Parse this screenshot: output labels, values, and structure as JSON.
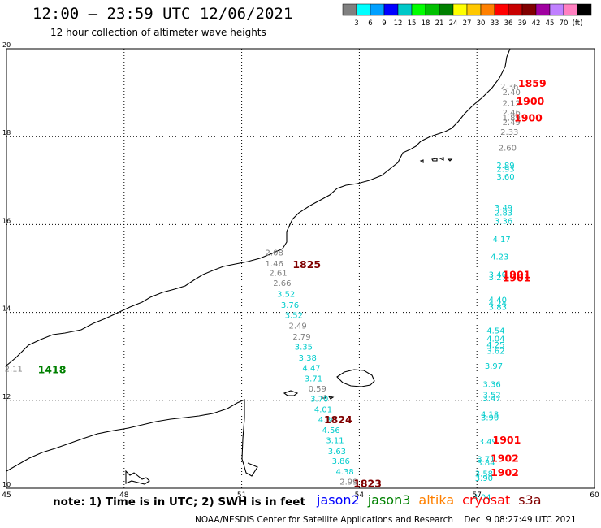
{
  "header": {
    "title": "12:00 – 23:59 UTC 12/06/2021",
    "subtitle": "12 hour collection of altimeter wave heights"
  },
  "colorbar": {
    "swatches": [
      "#808080",
      "#00ffff",
      "#00a0ff",
      "#0000ff",
      "#00c8c8",
      "#00ff00",
      "#00c000",
      "#008000",
      "#ffff00",
      "#ffc800",
      "#ff8000",
      "#ff0000",
      "#c80000",
      "#800000",
      "#a000a0",
      "#c080ff",
      "#ff80c0",
      "#000000"
    ],
    "labels": [
      "3",
      "6",
      "9",
      "12",
      "15",
      "18",
      "21",
      "24",
      "27",
      "30",
      "33",
      "36",
      "39",
      "42",
      "45",
      "70",
      "(ft)"
    ]
  },
  "axes": {
    "x_ticks": [
      "45",
      "48",
      "51",
      "54",
      "57",
      "60"
    ],
    "y_ticks": [
      "20",
      "18",
      "16",
      "14",
      "12",
      "10"
    ]
  },
  "readings": [
    {
      "lon": 51.6,
      "lat": 15.3,
      "v": "2.08",
      "c": "#808080"
    },
    {
      "lon": 51.6,
      "lat": 15.05,
      "v": "1.46",
      "c": "#808080"
    },
    {
      "lon": 51.7,
      "lat": 14.83,
      "v": "2.61",
      "c": "#808080"
    },
    {
      "lon": 51.8,
      "lat": 14.6,
      "v": "2.66",
      "c": "#808080"
    },
    {
      "lon": 51.9,
      "lat": 14.35,
      "v": "3.52",
      "c": "#00cccc"
    },
    {
      "lon": 52.0,
      "lat": 14.1,
      "v": "3.76",
      "c": "#00cccc"
    },
    {
      "lon": 52.1,
      "lat": 13.87,
      "v": "3.52",
      "c": "#00cccc"
    },
    {
      "lon": 52.2,
      "lat": 13.63,
      "v": "2.49",
      "c": "#808080"
    },
    {
      "lon": 52.3,
      "lat": 13.38,
      "v": "2.79",
      "c": "#808080"
    },
    {
      "lon": 52.35,
      "lat": 13.15,
      "v": "3.35",
      "c": "#00cccc"
    },
    {
      "lon": 52.45,
      "lat": 12.9,
      "v": "3.38",
      "c": "#00cccc"
    },
    {
      "lon": 52.55,
      "lat": 12.67,
      "v": "4.47",
      "c": "#00cccc"
    },
    {
      "lon": 52.6,
      "lat": 12.43,
      "v": "3.71",
      "c": "#00cccc"
    },
    {
      "lon": 52.7,
      "lat": 12.2,
      "v": "0.59",
      "c": "#808080"
    },
    {
      "lon": 52.75,
      "lat": 11.97,
      "v": "3.70",
      "c": "#00cccc"
    },
    {
      "lon": 52.85,
      "lat": 11.73,
      "v": "4.01",
      "c": "#00cccc"
    },
    {
      "lon": 52.95,
      "lat": 11.5,
      "v": "4.30",
      "c": "#00cccc"
    },
    {
      "lon": 53.05,
      "lat": 11.26,
      "v": "4.56",
      "c": "#00cccc"
    },
    {
      "lon": 53.15,
      "lat": 11.03,
      "v": "3.11",
      "c": "#00cccc"
    },
    {
      "lon": 53.2,
      "lat": 10.78,
      "v": "3.63",
      "c": "#00cccc"
    },
    {
      "lon": 53.3,
      "lat": 10.55,
      "v": "3.86",
      "c": "#00cccc"
    },
    {
      "lon": 53.4,
      "lat": 10.31,
      "v": "4.38",
      "c": "#00cccc"
    },
    {
      "lon": 53.5,
      "lat": 10.08,
      "v": "2.99",
      "c": "#808080"
    },
    {
      "lon": 44.95,
      "lat": 12.65,
      "v": "2.11",
      "c": "#808080"
    },
    {
      "lon": 57.6,
      "lat": 19.08,
      "v": "2.36",
      "c": "#808080"
    },
    {
      "lon": 57.65,
      "lat": 18.95,
      "v": "2.40",
      "c": "#808080"
    },
    {
      "lon": 57.65,
      "lat": 18.7,
      "v": "2.12",
      "c": "#808080"
    },
    {
      "lon": 57.65,
      "lat": 18.48,
      "v": "2.46",
      "c": "#808080"
    },
    {
      "lon": 57.65,
      "lat": 18.36,
      "v": "1.89",
      "c": "#808080"
    },
    {
      "lon": 57.65,
      "lat": 18.26,
      "v": "2.49",
      "c": "#808080"
    },
    {
      "lon": 57.6,
      "lat": 18.04,
      "v": "2.33",
      "c": "#808080"
    },
    {
      "lon": 57.55,
      "lat": 17.68,
      "v": "2.60",
      "c": "#808080"
    },
    {
      "lon": 57.5,
      "lat": 17.28,
      "v": "2.89",
      "c": "#00cccc"
    },
    {
      "lon": 57.5,
      "lat": 17.2,
      "v": "2.93",
      "c": "#00cccc"
    },
    {
      "lon": 57.5,
      "lat": 17.02,
      "v": "3.60",
      "c": "#00cccc"
    },
    {
      "lon": 57.45,
      "lat": 16.32,
      "v": "3.49",
      "c": "#00cccc"
    },
    {
      "lon": 57.45,
      "lat": 16.2,
      "v": "2.83",
      "c": "#00cccc"
    },
    {
      "lon": 57.45,
      "lat": 16.02,
      "v": "3.36",
      "c": "#00cccc"
    },
    {
      "lon": 57.4,
      "lat": 15.6,
      "v": "4.17",
      "c": "#00cccc"
    },
    {
      "lon": 57.35,
      "lat": 15.2,
      "v": "4.23",
      "c": "#00cccc"
    },
    {
      "lon": 57.3,
      "lat": 14.8,
      "v": "3.40",
      "c": "#00cccc"
    },
    {
      "lon": 57.3,
      "lat": 14.73,
      "v": "3.27",
      "c": "#00cccc"
    },
    {
      "lon": 57.3,
      "lat": 14.22,
      "v": "4.40",
      "c": "#00cccc"
    },
    {
      "lon": 57.3,
      "lat": 14.14,
      "v": "4.24",
      "c": "#00cccc"
    },
    {
      "lon": 57.3,
      "lat": 14.06,
      "v": "3.83",
      "c": "#00cccc"
    },
    {
      "lon": 57.25,
      "lat": 13.52,
      "v": "4.54",
      "c": "#00cccc"
    },
    {
      "lon": 57.25,
      "lat": 13.34,
      "v": "4.04",
      "c": "#00cccc"
    },
    {
      "lon": 57.25,
      "lat": 13.2,
      "v": "4.25",
      "c": "#00cccc"
    },
    {
      "lon": 57.25,
      "lat": 13.06,
      "v": "3.62",
      "c": "#00cccc"
    },
    {
      "lon": 57.2,
      "lat": 12.72,
      "v": "3.97",
      "c": "#00cccc"
    },
    {
      "lon": 57.15,
      "lat": 12.3,
      "v": "3.36",
      "c": "#00cccc"
    },
    {
      "lon": 57.15,
      "lat": 12.06,
      "v": "3.52",
      "c": "#00cccc"
    },
    {
      "lon": 57.15,
      "lat": 11.98,
      "v": "3.47",
      "c": "#00cccc"
    },
    {
      "lon": 57.1,
      "lat": 11.62,
      "v": "4.18",
      "c": "#00cccc"
    },
    {
      "lon": 57.1,
      "lat": 11.54,
      "v": "3.90",
      "c": "#00cccc"
    },
    {
      "lon": 57.05,
      "lat": 11.0,
      "v": "3.49",
      "c": "#00cccc"
    },
    {
      "lon": 57.0,
      "lat": 10.6,
      "v": "3.71",
      "c": "#00cccc"
    },
    {
      "lon": 57.0,
      "lat": 10.52,
      "v": "3.84",
      "c": "#00cccc"
    },
    {
      "lon": 56.95,
      "lat": 10.27,
      "v": "3.58",
      "c": "#00cccc"
    },
    {
      "lon": 56.95,
      "lat": 10.17,
      "v": "3.90",
      "c": "#00cccc"
    },
    {
      "lon": 56.9,
      "lat": 9.73,
      "v": "4.04",
      "c": "#00cccc"
    }
  ],
  "time_labels": [
    {
      "lon": 52.3,
      "lat": 15.01,
      "t": "1825",
      "c": "#800000"
    },
    {
      "lon": 53.1,
      "lat": 11.48,
      "t": "1824",
      "c": "#800000"
    },
    {
      "lon": 53.85,
      "lat": 10.03,
      "t": "1823",
      "c": "#800000"
    },
    {
      "lon": 45.8,
      "lat": 12.62,
      "t": "1418",
      "c": "#008000"
    },
    {
      "lon": 58.05,
      "lat": 19.13,
      "t": "1859",
      "c": "#ff0000"
    },
    {
      "lon": 58.0,
      "lat": 18.72,
      "t": "1900",
      "c": "#ff0000"
    },
    {
      "lon": 57.95,
      "lat": 18.35,
      "t": "1900",
      "c": "#ff0000"
    },
    {
      "lon": 57.65,
      "lat": 14.78,
      "t": "1901",
      "c": "#ff0000"
    },
    {
      "lon": 57.65,
      "lat": 14.7,
      "t": "1901",
      "c": "#ff0000"
    },
    {
      "lon": 57.4,
      "lat": 11.02,
      "t": "1901",
      "c": "#ff0000"
    },
    {
      "lon": 57.35,
      "lat": 10.6,
      "t": "1902",
      "c": "#ff0000"
    },
    {
      "lon": 57.35,
      "lat": 10.28,
      "t": "1902",
      "c": "#ff0000"
    }
  ],
  "footer": {
    "note": "note:  1) Time is in UTC;  2) SWH is in feet",
    "satellites": [
      {
        "name": "jason2",
        "color": "#0000ff"
      },
      {
        "name": "jason3",
        "color": "#008000"
      },
      {
        "name": "altika",
        "color": "#ff8000"
      },
      {
        "name": "cryosat",
        "color": "#ff0000"
      },
      {
        "name": "s3a",
        "color": "#800000"
      }
    ],
    "credit": "NOAA/NESDIS Center for Satellite Applications and Research    Dec  9 08:27:49 UTC 2021"
  }
}
